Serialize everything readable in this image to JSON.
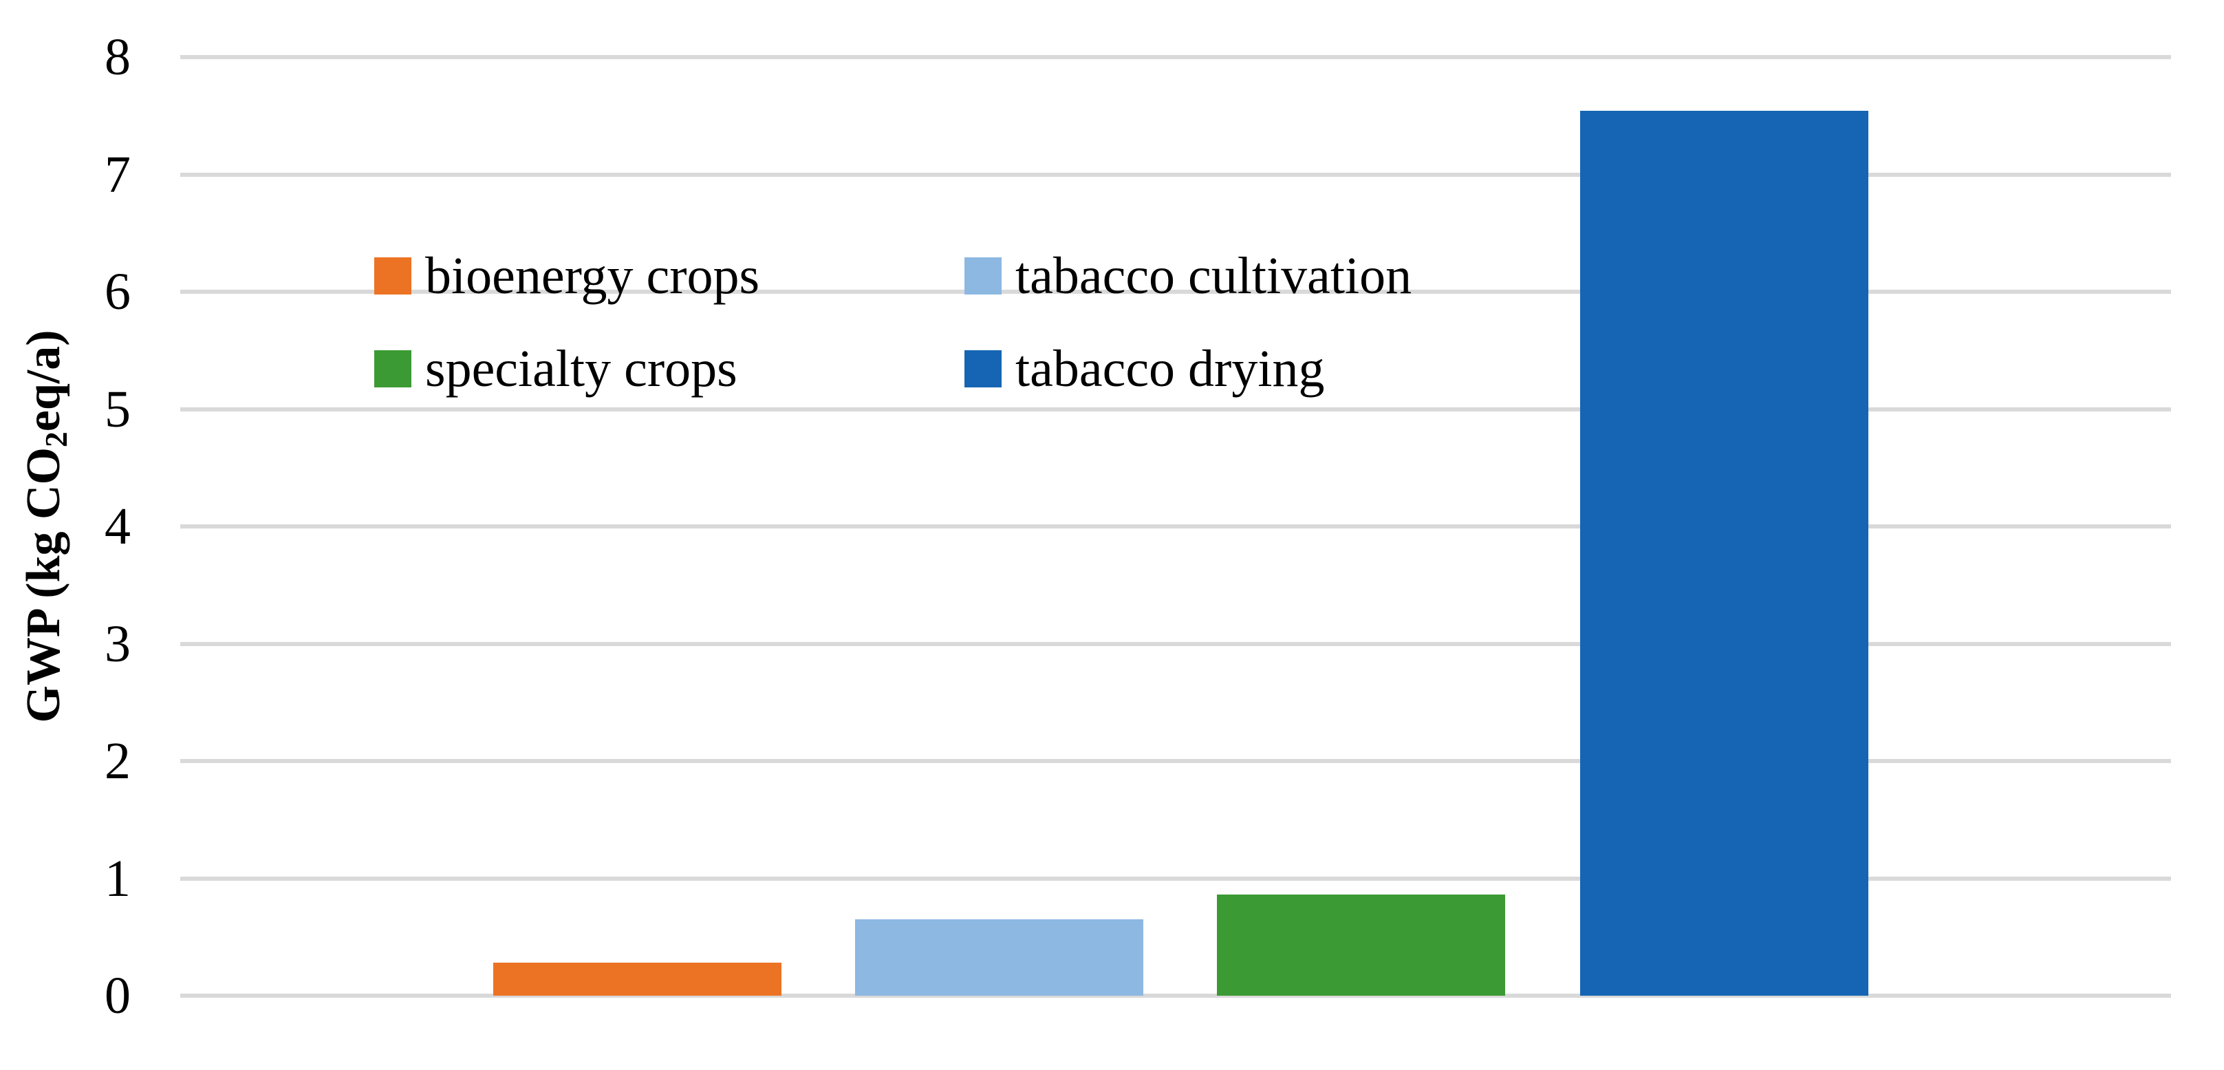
{
  "chart_data": {
    "type": "bar",
    "title": "",
    "xlabel": "",
    "ylabel": "GWP (kg CO2eq/a)",
    "ylabel_parts": {
      "pre": "GWP (kg CO",
      "sub": "2",
      "post": "eq/a)"
    },
    "categories": [
      "bioenergy crops",
      "tabacco cultivation",
      "specialty crops",
      "tabacco drying"
    ],
    "values": [
      0.28,
      0.65,
      0.86,
      7.54
    ],
    "colors": [
      "#EC7323",
      "#8CB8E2",
      "#3B9A33",
      "#1565B4"
    ],
    "ylim": [
      0,
      8
    ],
    "yticks": [
      0,
      1,
      2,
      3,
      4,
      5,
      6,
      7,
      8
    ],
    "grid": true,
    "gridline_color": "#D9D9D9",
    "legend_position": "inside-top-left",
    "legend_items": [
      {
        "label": "bioenergy crops",
        "color": "#EC7323"
      },
      {
        "label": "tabacco cultivation",
        "color": "#8CB8E2"
      },
      {
        "label": "specialty crops",
        "color": "#3B9A33"
      },
      {
        "label": "tabacco drying",
        "color": "#1565B4"
      }
    ]
  }
}
